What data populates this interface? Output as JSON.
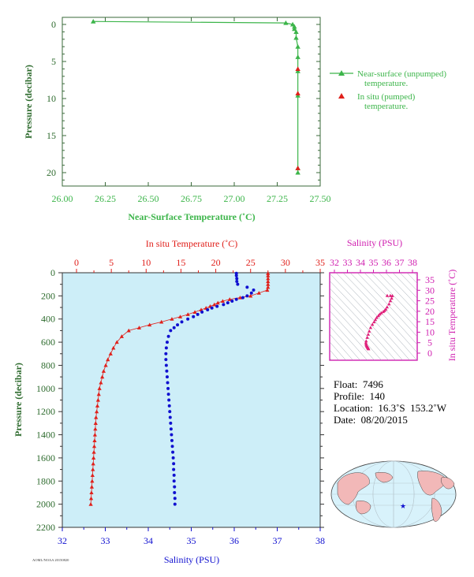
{
  "colors": {
    "green": "#3cb54a",
    "dark_green": "#2e6b2e",
    "red": "#e0201b",
    "blue": "#1010d0",
    "magenta": "#d020b0",
    "plot_bg": "#cdeef8",
    "land": "#f2b8b8",
    "ocean": "#d8f2fb"
  },
  "top_chart": {
    "xlabel": "Near-Surface Temperature (˚C)",
    "ylabel": "Pressure (decibar)",
    "xlim": [
      26.0,
      27.5
    ],
    "ylim": [
      0,
      22
    ],
    "xticks": [
      "26.00",
      "26.25",
      "26.50",
      "26.75",
      "27.00",
      "27.25",
      "27.50"
    ],
    "yticks": [
      "0",
      "5",
      "10",
      "15",
      "20"
    ],
    "legend": [
      {
        "label_line1": "Near-surface (unpumped)",
        "label_line2": "temperature.",
        "marker": "green-triangle-line"
      },
      {
        "label_line1": "In situ (pumped)",
        "label_line2": "temperature.",
        "marker": "red-triangle"
      }
    ]
  },
  "main_chart": {
    "top_axis_label": "In situ Temperature (˚C)",
    "bottom_axis_label": "Salinity (PSU)",
    "ylabel": "Pressure (decibar)",
    "temp_ticks": [
      "0",
      "5",
      "10",
      "15",
      "20",
      "25",
      "30",
      "35"
    ],
    "sal_ticks": [
      "32",
      "33",
      "34",
      "35",
      "36",
      "37",
      "38"
    ],
    "p_ticks": [
      "0",
      "200",
      "400",
      "600",
      "800",
      "1000",
      "1200",
      "1400",
      "1600",
      "1800",
      "2000",
      "2200"
    ],
    "footer_code": "AOML/NOAA 20150820"
  },
  "ts_chart": {
    "top_label": "Salinity (PSU)",
    "right_label": "In situ Temperature (˚C)",
    "sal_ticks": [
      "32",
      "33",
      "34",
      "35",
      "36",
      "37",
      "38"
    ],
    "temp_ticks": [
      "0",
      "5",
      "10",
      "15",
      "20",
      "25",
      "30",
      "35"
    ]
  },
  "info": {
    "float": "Float:  7496",
    "profile": "Profile:  140",
    "location": "Location:  16.3˚S  153.2˚W",
    "date": "Date:  08/20/2015"
  },
  "chart_data": [
    {
      "type": "line",
      "title": "",
      "xlabel": "Near-Surface Temperature (˚C)",
      "ylabel": "Pressure (decibar)",
      "xlim": [
        26.0,
        27.5
      ],
      "ylim": [
        22,
        0
      ],
      "series": [
        {
          "name": "Near-surface (unpumped) temperature.",
          "x": [
            26.18,
            27.3,
            27.34,
            27.35,
            27.35,
            27.36,
            27.36,
            27.37,
            27.37,
            27.37,
            27.37,
            27.37,
            27.37
          ],
          "y": [
            -0.4,
            -0.2,
            0.0,
            0.3,
            0.6,
            1.0,
            1.8,
            3.0,
            4.4,
            6.3,
            9.6,
            19.4,
            20.0
          ]
        },
        {
          "name": "In situ (pumped) temperature.",
          "x": [
            27.37,
            27.37,
            27.37
          ],
          "y": [
            6.0,
            9.3,
            19.4
          ]
        }
      ]
    },
    {
      "type": "scatter",
      "title": "",
      "ylabel": "Pressure (decibar)",
      "ylim": [
        2200,
        0
      ],
      "series": [
        {
          "name": "In situ Temperature (˚C)",
          "axis": "top",
          "xlim": [
            0,
            35
          ],
          "p": [
            5,
            25,
            50,
            75,
            100,
            125,
            150,
            175,
            200,
            215,
            230,
            245,
            260,
            275,
            290,
            305,
            320,
            340,
            360,
            380,
            400,
            425,
            450,
            475,
            500,
            550,
            600,
            650,
            700,
            750,
            800,
            850,
            900,
            950,
            1000,
            1050,
            1100,
            1150,
            1200,
            1250,
            1300,
            1350,
            1400,
            1450,
            1500,
            1550,
            1600,
            1650,
            1700,
            1750,
            1800,
            1850,
            1900,
            1950,
            2000
          ],
          "x": [
            27.5,
            27.5,
            27.5,
            27.5,
            27.5,
            27.5,
            27.4,
            26.2,
            25.0,
            23.5,
            22.0,
            21.0,
            20.3,
            19.8,
            19.2,
            18.6,
            17.9,
            17.0,
            16.0,
            14.9,
            13.7,
            12.2,
            10.5,
            9.0,
            7.5,
            6.5,
            5.8,
            5.3,
            4.9,
            4.5,
            4.2,
            3.9,
            3.7,
            3.5,
            3.3,
            3.2,
            3.1,
            3.0,
            2.9,
            2.8,
            2.75,
            2.7,
            2.65,
            2.6,
            2.55,
            2.5,
            2.45,
            2.4,
            2.35,
            2.3,
            2.25,
            2.2,
            2.15,
            2.1,
            2.05
          ]
        },
        {
          "name": "Salinity (PSU)",
          "axis": "bottom",
          "xlim": [
            32,
            38
          ],
          "p": [
            5,
            25,
            50,
            75,
            100,
            125,
            150,
            175,
            200,
            215,
            230,
            245,
            260,
            275,
            290,
            305,
            320,
            340,
            360,
            380,
            400,
            425,
            450,
            475,
            500,
            550,
            600,
            650,
            700,
            750,
            800,
            850,
            900,
            950,
            1000,
            1050,
            1100,
            1150,
            1200,
            1250,
            1300,
            1350,
            1400,
            1450,
            1500,
            1550,
            1600,
            1650,
            1700,
            1750,
            1800,
            1850,
            1900,
            1950,
            2000
          ],
          "x": [
            36.05,
            36.05,
            36.06,
            36.06,
            36.08,
            36.3,
            36.45,
            36.4,
            36.3,
            36.2,
            36.05,
            35.95,
            35.85,
            35.75,
            35.6,
            35.48,
            35.38,
            35.25,
            35.15,
            35.05,
            34.92,
            34.78,
            34.68,
            34.6,
            34.52,
            34.47,
            34.44,
            34.42,
            34.41,
            34.41,
            34.42,
            34.43,
            34.44,
            34.45,
            34.46,
            34.47,
            34.48,
            34.49,
            34.5,
            34.51,
            34.52,
            34.53,
            34.54,
            34.55,
            34.56,
            34.57,
            34.58,
            34.59,
            34.59,
            34.6,
            34.6,
            34.61,
            34.61,
            34.62,
            34.62
          ]
        }
      ]
    },
    {
      "type": "scatter",
      "title": "",
      "xlabel": "Salinity (PSU)",
      "ylabel": "In situ Temperature (˚C)",
      "xlim": [
        32,
        38
      ],
      "ylim": [
        0,
        35
      ],
      "series": [
        {
          "name": "T-S profile",
          "x": [
            34.62,
            34.61,
            34.6,
            34.58,
            34.56,
            34.53,
            34.5,
            34.47,
            34.44,
            34.42,
            34.44,
            34.52,
            34.6,
            34.68,
            34.78,
            34.92,
            35.05,
            35.15,
            35.25,
            35.38,
            35.48,
            35.6,
            35.75,
            35.85,
            35.95,
            36.05,
            36.2,
            36.3,
            36.4,
            36.45,
            36.3,
            36.06
          ],
          "y": [
            2.05,
            2.2,
            2.4,
            2.6,
            2.8,
            3.0,
            3.3,
            3.7,
            4.2,
            4.9,
            5.8,
            7.5,
            9.0,
            10.5,
            12.2,
            13.7,
            14.9,
            16.0,
            17.0,
            17.9,
            18.6,
            19.2,
            19.8,
            20.3,
            21.0,
            22.0,
            23.5,
            25.0,
            26.2,
            27.4,
            27.5,
            27.5
          ]
        }
      ]
    }
  ]
}
